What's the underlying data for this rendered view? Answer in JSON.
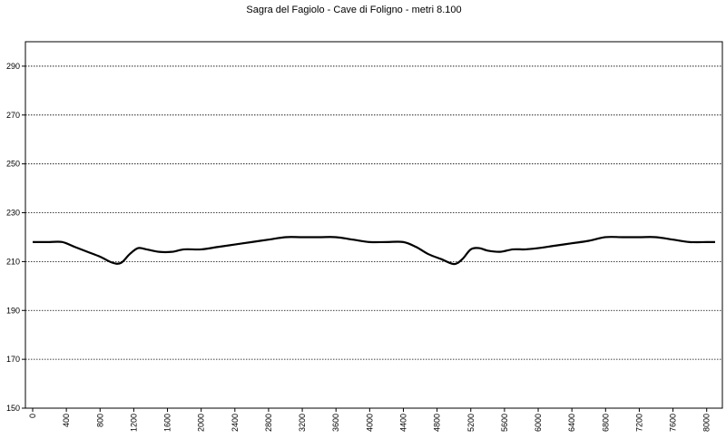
{
  "chart_data": {
    "type": "line",
    "title": "Sagra del Fagiolo - Cave di Foligno - metri 8.100",
    "xlabel": "",
    "ylabel": "",
    "xlim": [
      0,
      8100
    ],
    "ylim": [
      150,
      300
    ],
    "grid": true,
    "legend": "none",
    "yticks": [
      150,
      170,
      190,
      210,
      230,
      250,
      270,
      290
    ],
    "xticks": [
      0,
      400,
      800,
      1200,
      1600,
      2000,
      2400,
      2800,
      3200,
      3600,
      4000,
      4400,
      4800,
      5200,
      5600,
      6000,
      6400,
      6800,
      7200,
      7600,
      8000
    ],
    "series": [
      {
        "color": "#000000",
        "x": [
          0,
          200,
          350,
          500,
          650,
          800,
          950,
          1050,
          1150,
          1250,
          1350,
          1500,
          1650,
          1800,
          2000,
          2200,
          2400,
          2600,
          2800,
          3000,
          3200,
          3400,
          3600,
          3800,
          4000,
          4200,
          4400,
          4550,
          4700,
          4850,
          5000,
          5100,
          5200,
          5300,
          5400,
          5550,
          5700,
          5850,
          6000,
          6200,
          6400,
          6600,
          6800,
          7000,
          7200,
          7400,
          7600,
          7800,
          8000,
          8100
        ],
        "y": [
          218,
          218,
          218,
          216,
          214,
          212,
          209.5,
          209.5,
          213,
          215.5,
          215,
          214,
          214,
          215,
          215,
          216,
          217,
          218,
          219,
          220,
          220,
          220,
          220,
          219,
          218,
          218,
          218,
          216,
          213,
          211,
          209,
          211,
          215,
          215.5,
          214.5,
          214,
          215,
          215,
          215.5,
          216.5,
          217.5,
          218.5,
          220,
          220,
          220,
          220,
          219,
          218,
          218,
          218
        ]
      }
    ]
  }
}
